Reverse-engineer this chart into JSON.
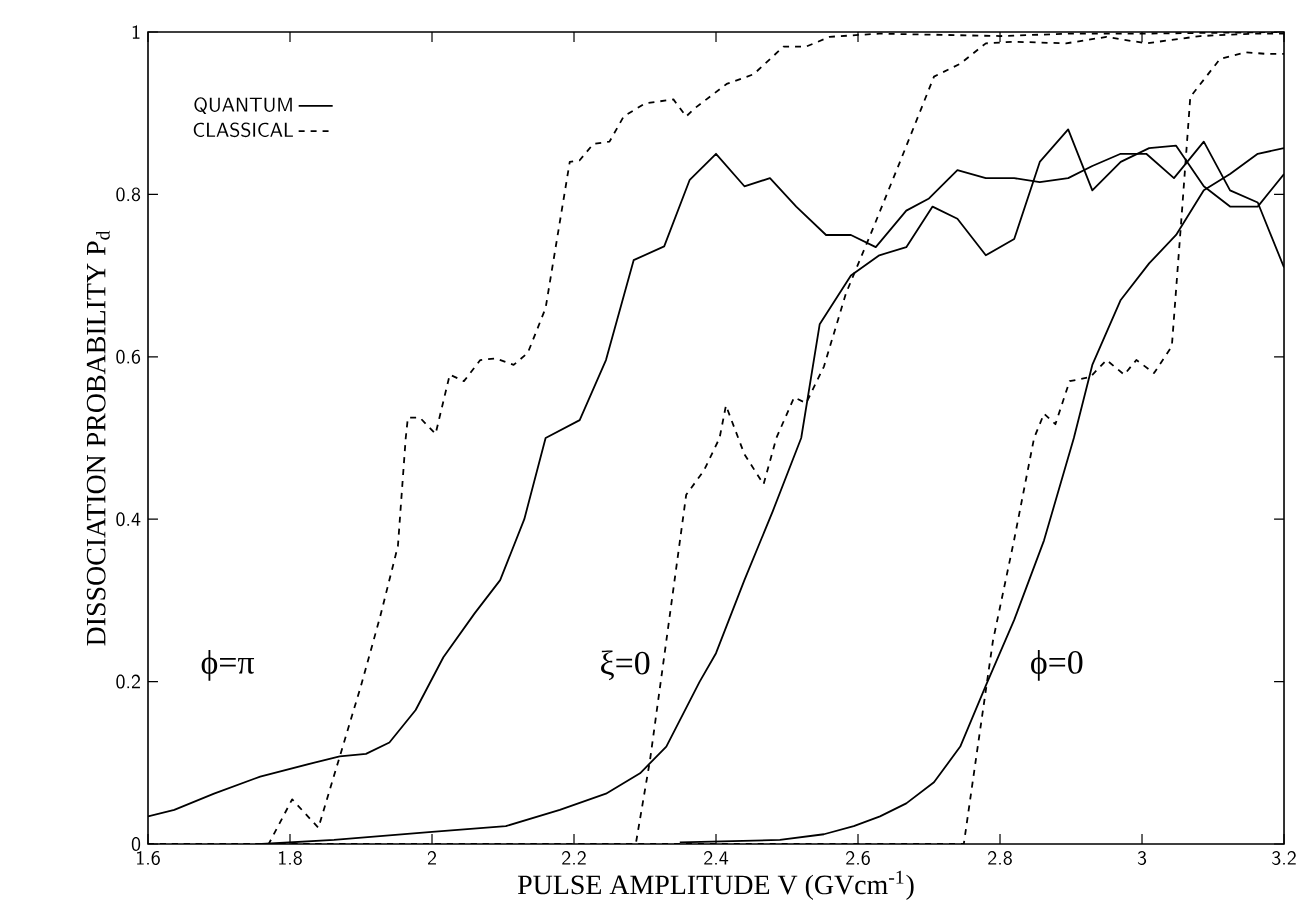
{
  "chart_data": {
    "type": "line",
    "xlabel": "PULSE AMPLITUDE V (GVcm$^{-1}$)",
    "ylabel": "DISSOCIATION PROBABILITY P$_{d}$",
    "xlim": [
      1.6,
      3.2
    ],
    "ylim": [
      0,
      1
    ],
    "xticks": [
      1.6,
      1.8,
      2,
      2.2,
      2.4,
      2.6,
      2.8,
      3,
      3.2
    ],
    "yticks": [
      0,
      0.2,
      0.4,
      0.6,
      0.8,
      1
    ],
    "legend": "top left",
    "grid": false,
    "annotations": [
      "ϕ=π",
      "ξ=0",
      "ϕ=0"
    ],
    "series": [
      {
        "name": "QUANTUM",
        "color": "#000000",
        "line_style": "solid",
        "x": [
          1.6,
          1.637,
          1.693,
          1.758,
          1.833,
          1.87,
          1.907,
          1.94,
          1.977,
          2.016,
          2.06,
          2.096,
          2.13,
          2.16,
          2.208,
          2.245,
          2.284,
          2.327,
          2.363,
          2.4,
          2.44,
          2.476,
          2.513,
          2.555,
          2.59,
          2.625,
          2.668,
          2.7,
          2.74,
          2.78,
          2.82,
          2.856,
          2.896,
          2.93,
          2.97,
          3.006,
          3.045,
          3.087,
          3.124,
          3.163,
          3.2
        ],
        "values": [
          0.034,
          0.042,
          0.062,
          0.083,
          0.1,
          0.108,
          0.111,
          0.125,
          0.165,
          0.23,
          0.284,
          0.325,
          0.4,
          0.5,
          0.522,
          0.596,
          0.719,
          0.736,
          0.818,
          0.85,
          0.81,
          0.82,
          0.785,
          0.75,
          0.75,
          0.735,
          0.78,
          0.795,
          0.83,
          0.82,
          0.82,
          0.815,
          0.82,
          0.835,
          0.85,
          0.85,
          0.82,
          0.865,
          0.805,
          0.79,
          0.71
        ]
      },
      {
        "color": "#000000",
        "line_style": "solid",
        "x": [
          1.76,
          1.862,
          2.0,
          2.104,
          2.18,
          2.245,
          2.293,
          2.33,
          2.377,
          2.4,
          2.44,
          2.48,
          2.52,
          2.546,
          2.59,
          2.63,
          2.668,
          2.705,
          2.74,
          2.78,
          2.82,
          2.856,
          2.896,
          2.93,
          2.97,
          3.01,
          3.048,
          3.087,
          3.124,
          3.163,
          3.2
        ],
        "values": [
          0,
          0.005,
          0.015,
          0.022,
          0.042,
          0.062,
          0.087,
          0.12,
          0.2,
          0.235,
          0.325,
          0.41,
          0.5,
          0.64,
          0.7,
          0.725,
          0.735,
          0.785,
          0.77,
          0.725,
          0.745,
          0.84,
          0.88,
          0.805,
          0.84,
          0.857,
          0.86,
          0.81,
          0.785,
          0.785,
          0.825
        ]
      },
      {
        "color": "#000000",
        "line_style": "solid",
        "x": [
          2.349,
          2.49,
          2.552,
          2.594,
          2.631,
          2.668,
          2.707,
          2.744,
          2.78,
          2.82,
          2.862,
          2.904,
          2.93,
          2.97,
          3.01,
          3.048,
          3.087,
          3.124,
          3.163,
          3.2
        ],
        "values": [
          0.002,
          0.005,
          0.012,
          0.022,
          0.034,
          0.05,
          0.076,
          0.12,
          0.195,
          0.276,
          0.374,
          0.5,
          0.59,
          0.67,
          0.715,
          0.75,
          0.805,
          0.825,
          0.85,
          0.857
        ]
      },
      {
        "name": "CLASSICAL",
        "color": "#000000",
        "line_style": "dashed",
        "x": [
          1.6,
          1.77,
          1.803,
          1.84,
          1.9,
          1.927,
          1.952,
          1.963,
          1.966,
          1.983,
          2.005,
          2.025,
          2.045,
          2.068,
          2.09,
          2.115,
          2.135,
          2.16,
          2.194,
          2.208,
          2.227,
          2.25,
          2.27,
          2.3,
          2.34,
          2.358,
          2.37,
          2.415,
          2.453,
          2.495,
          2.527,
          2.56,
          2.63,
          2.8,
          2.9,
          3.0,
          3.2
        ],
        "values": [
          0,
          0,
          0.055,
          0.02,
          0.195,
          0.28,
          0.367,
          0.5,
          0.525,
          0.525,
          0.505,
          0.578,
          0.57,
          0.596,
          0.598,
          0.59,
          0.605,
          0.66,
          0.84,
          0.842,
          0.862,
          0.865,
          0.896,
          0.912,
          0.917,
          0.896,
          0.906,
          0.936,
          0.948,
          0.982,
          0.982,
          0.994,
          0.998,
          0.995,
          0.998,
          0.998,
          1
        ]
      },
      {
        "color": "#000000",
        "line_style": "dashed",
        "x": [
          1.6,
          2.287,
          2.307,
          2.33,
          2.358,
          2.383,
          2.405,
          2.414,
          2.44,
          2.467,
          2.485,
          2.51,
          2.527,
          2.552,
          2.583,
          2.622,
          2.66,
          2.707,
          2.744,
          2.78,
          2.82,
          2.893,
          2.95,
          3.006,
          3.082,
          3.158,
          3.2
        ],
        "values": [
          0,
          0,
          0.103,
          0.25,
          0.43,
          0.46,
          0.5,
          0.54,
          0.48,
          0.443,
          0.5,
          0.55,
          0.543,
          0.588,
          0.678,
          0.76,
          0.842,
          0.945,
          0.961,
          0.986,
          0.988,
          0.986,
          0.994,
          0.986,
          0.995,
          0.998,
          0.998
        ]
      },
      {
        "color": "#000000",
        "line_style": "dashed",
        "x": [
          1.6,
          2.749,
          2.767,
          2.79,
          2.82,
          2.848,
          2.862,
          2.878,
          2.898,
          2.927,
          2.95,
          2.975,
          2.992,
          3.017,
          3.042,
          3.056,
          3.068,
          3.11,
          3.147,
          3.175,
          3.2
        ],
        "values": [
          0,
          0,
          0.11,
          0.25,
          0.375,
          0.5,
          0.53,
          0.517,
          0.57,
          0.575,
          0.596,
          0.578,
          0.596,
          0.58,
          0.613,
          0.776,
          0.92,
          0.967,
          0.975,
          0.973,
          0.973
        ]
      }
    ]
  }
}
